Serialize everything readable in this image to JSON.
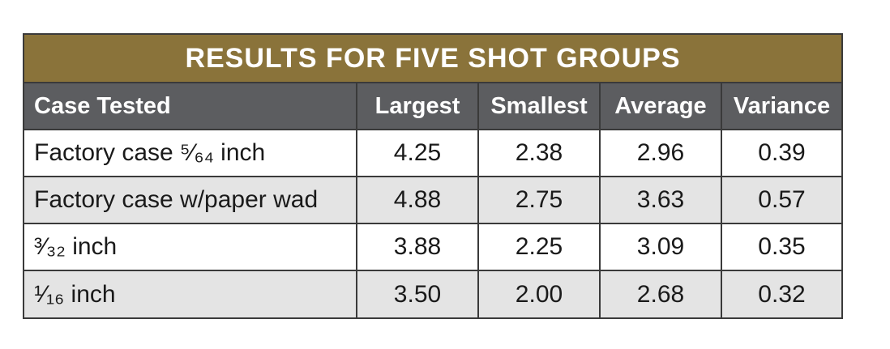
{
  "title": "RESULTS FOR FIVE SHOT GROUPS",
  "columns": [
    "Case Tested",
    "Largest",
    "Smallest",
    "Average",
    "Variance"
  ],
  "rows": [
    [
      "Factory case ⁵⁄₆₄ inch",
      "4.25",
      "2.38",
      "2.96",
      "0.39"
    ],
    [
      "Factory case w/paper wad",
      "4.88",
      "2.75",
      "3.63",
      "0.57"
    ],
    [
      "³⁄₃₂ inch",
      "3.88",
      "2.25",
      "3.09",
      "0.35"
    ],
    [
      "¹⁄₁₆ inch",
      "3.50",
      "2.00",
      "2.68",
      "0.32"
    ]
  ],
  "colors": {
    "title_bg": "#8a733a",
    "header_bg": "#5c5d60",
    "row_alt_bg": "#e4e4e4",
    "border": "#3a3a3a"
  }
}
